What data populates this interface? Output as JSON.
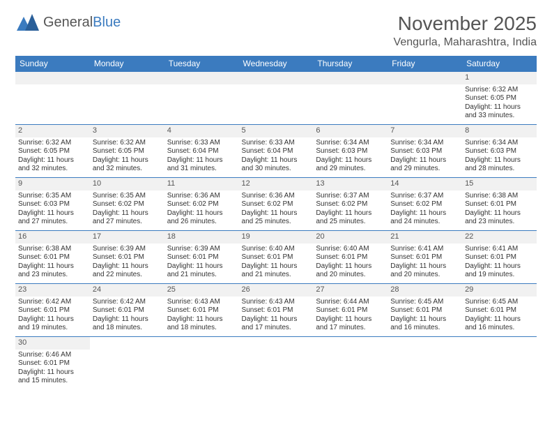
{
  "logo": {
    "text1": "General",
    "text2": "Blue"
  },
  "title": "November 2025",
  "location": "Vengurla, Maharashtra, India",
  "colors": {
    "header_bg": "#3b7bbf",
    "header_text": "#ffffff",
    "daynum_bg": "#f1f1f1",
    "text": "#444444",
    "border": "#3b7bbf",
    "page_bg": "#ffffff",
    "logo_gray": "#555555",
    "logo_blue": "#3b7bbf"
  },
  "fonts": {
    "title_pt": 28,
    "location_pt": 16,
    "header_pt": 12,
    "cell_pt": 10
  },
  "dayHeaders": [
    "Sunday",
    "Monday",
    "Tuesday",
    "Wednesday",
    "Thursday",
    "Friday",
    "Saturday"
  ],
  "weeks": [
    [
      null,
      null,
      null,
      null,
      null,
      null,
      {
        "n": "1",
        "sr": "Sunrise: 6:32 AM",
        "ss": "Sunset: 6:05 PM",
        "d1": "Daylight: 11 hours",
        "d2": "and 33 minutes."
      }
    ],
    [
      {
        "n": "2",
        "sr": "Sunrise: 6:32 AM",
        "ss": "Sunset: 6:05 PM",
        "d1": "Daylight: 11 hours",
        "d2": "and 32 minutes."
      },
      {
        "n": "3",
        "sr": "Sunrise: 6:32 AM",
        "ss": "Sunset: 6:05 PM",
        "d1": "Daylight: 11 hours",
        "d2": "and 32 minutes."
      },
      {
        "n": "4",
        "sr": "Sunrise: 6:33 AM",
        "ss": "Sunset: 6:04 PM",
        "d1": "Daylight: 11 hours",
        "d2": "and 31 minutes."
      },
      {
        "n": "5",
        "sr": "Sunrise: 6:33 AM",
        "ss": "Sunset: 6:04 PM",
        "d1": "Daylight: 11 hours",
        "d2": "and 30 minutes."
      },
      {
        "n": "6",
        "sr": "Sunrise: 6:34 AM",
        "ss": "Sunset: 6:03 PM",
        "d1": "Daylight: 11 hours",
        "d2": "and 29 minutes."
      },
      {
        "n": "7",
        "sr": "Sunrise: 6:34 AM",
        "ss": "Sunset: 6:03 PM",
        "d1": "Daylight: 11 hours",
        "d2": "and 29 minutes."
      },
      {
        "n": "8",
        "sr": "Sunrise: 6:34 AM",
        "ss": "Sunset: 6:03 PM",
        "d1": "Daylight: 11 hours",
        "d2": "and 28 minutes."
      }
    ],
    [
      {
        "n": "9",
        "sr": "Sunrise: 6:35 AM",
        "ss": "Sunset: 6:03 PM",
        "d1": "Daylight: 11 hours",
        "d2": "and 27 minutes."
      },
      {
        "n": "10",
        "sr": "Sunrise: 6:35 AM",
        "ss": "Sunset: 6:02 PM",
        "d1": "Daylight: 11 hours",
        "d2": "and 27 minutes."
      },
      {
        "n": "11",
        "sr": "Sunrise: 6:36 AM",
        "ss": "Sunset: 6:02 PM",
        "d1": "Daylight: 11 hours",
        "d2": "and 26 minutes."
      },
      {
        "n": "12",
        "sr": "Sunrise: 6:36 AM",
        "ss": "Sunset: 6:02 PM",
        "d1": "Daylight: 11 hours",
        "d2": "and 25 minutes."
      },
      {
        "n": "13",
        "sr": "Sunrise: 6:37 AM",
        "ss": "Sunset: 6:02 PM",
        "d1": "Daylight: 11 hours",
        "d2": "and 25 minutes."
      },
      {
        "n": "14",
        "sr": "Sunrise: 6:37 AM",
        "ss": "Sunset: 6:02 PM",
        "d1": "Daylight: 11 hours",
        "d2": "and 24 minutes."
      },
      {
        "n": "15",
        "sr": "Sunrise: 6:38 AM",
        "ss": "Sunset: 6:01 PM",
        "d1": "Daylight: 11 hours",
        "d2": "and 23 minutes."
      }
    ],
    [
      {
        "n": "16",
        "sr": "Sunrise: 6:38 AM",
        "ss": "Sunset: 6:01 PM",
        "d1": "Daylight: 11 hours",
        "d2": "and 23 minutes."
      },
      {
        "n": "17",
        "sr": "Sunrise: 6:39 AM",
        "ss": "Sunset: 6:01 PM",
        "d1": "Daylight: 11 hours",
        "d2": "and 22 minutes."
      },
      {
        "n": "18",
        "sr": "Sunrise: 6:39 AM",
        "ss": "Sunset: 6:01 PM",
        "d1": "Daylight: 11 hours",
        "d2": "and 21 minutes."
      },
      {
        "n": "19",
        "sr": "Sunrise: 6:40 AM",
        "ss": "Sunset: 6:01 PM",
        "d1": "Daylight: 11 hours",
        "d2": "and 21 minutes."
      },
      {
        "n": "20",
        "sr": "Sunrise: 6:40 AM",
        "ss": "Sunset: 6:01 PM",
        "d1": "Daylight: 11 hours",
        "d2": "and 20 minutes."
      },
      {
        "n": "21",
        "sr": "Sunrise: 6:41 AM",
        "ss": "Sunset: 6:01 PM",
        "d1": "Daylight: 11 hours",
        "d2": "and 20 minutes."
      },
      {
        "n": "22",
        "sr": "Sunrise: 6:41 AM",
        "ss": "Sunset: 6:01 PM",
        "d1": "Daylight: 11 hours",
        "d2": "and 19 minutes."
      }
    ],
    [
      {
        "n": "23",
        "sr": "Sunrise: 6:42 AM",
        "ss": "Sunset: 6:01 PM",
        "d1": "Daylight: 11 hours",
        "d2": "and 19 minutes."
      },
      {
        "n": "24",
        "sr": "Sunrise: 6:42 AM",
        "ss": "Sunset: 6:01 PM",
        "d1": "Daylight: 11 hours",
        "d2": "and 18 minutes."
      },
      {
        "n": "25",
        "sr": "Sunrise: 6:43 AM",
        "ss": "Sunset: 6:01 PM",
        "d1": "Daylight: 11 hours",
        "d2": "and 18 minutes."
      },
      {
        "n": "26",
        "sr": "Sunrise: 6:43 AM",
        "ss": "Sunset: 6:01 PM",
        "d1": "Daylight: 11 hours",
        "d2": "and 17 minutes."
      },
      {
        "n": "27",
        "sr": "Sunrise: 6:44 AM",
        "ss": "Sunset: 6:01 PM",
        "d1": "Daylight: 11 hours",
        "d2": "and 17 minutes."
      },
      {
        "n": "28",
        "sr": "Sunrise: 6:45 AM",
        "ss": "Sunset: 6:01 PM",
        "d1": "Daylight: 11 hours",
        "d2": "and 16 minutes."
      },
      {
        "n": "29",
        "sr": "Sunrise: 6:45 AM",
        "ss": "Sunset: 6:01 PM",
        "d1": "Daylight: 11 hours",
        "d2": "and 16 minutes."
      }
    ],
    [
      {
        "n": "30",
        "sr": "Sunrise: 6:46 AM",
        "ss": "Sunset: 6:01 PM",
        "d1": "Daylight: 11 hours",
        "d2": "and 15 minutes."
      },
      null,
      null,
      null,
      null,
      null,
      null
    ]
  ]
}
